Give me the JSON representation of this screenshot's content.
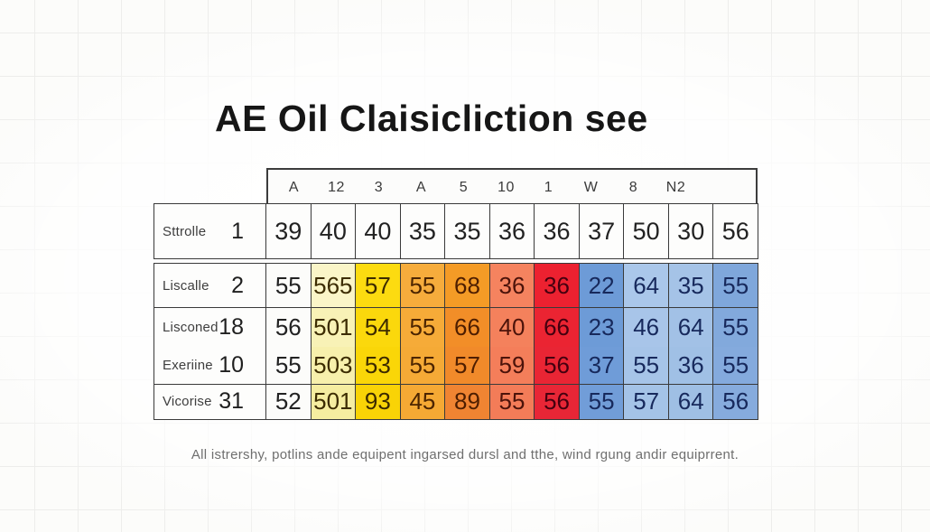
{
  "title": "AE Oil Claisicliction see",
  "caption": "All istrershy, potlins ande equipent ingarsed dursl and tthe, wind rgung andir equiprrent.",
  "chart_data": {
    "type": "table",
    "title": "AE Oil Claisicliction see",
    "column_headers": [
      "A",
      "12",
      "3",
      "A",
      "5",
      "10",
      "1",
      "W",
      "8",
      "N2"
    ],
    "rows": [
      {
        "label": "Sttrolle",
        "index": "1",
        "values": [
          39,
          40,
          40,
          35,
          35,
          36,
          36,
          37,
          50,
          30,
          56
        ]
      },
      {
        "label": "Liscalle",
        "index": "2",
        "values": [
          55,
          565,
          57,
          55,
          68,
          36,
          36,
          22,
          64,
          35,
          55
        ]
      },
      {
        "label": "Lisconed",
        "index": "18",
        "values": [
          56,
          501,
          54,
          55,
          66,
          40,
          66,
          23,
          46,
          64,
          55
        ]
      },
      {
        "label": "Exeriine",
        "index": "10",
        "values": [
          55,
          503,
          53,
          55,
          57,
          59,
          56,
          37,
          55,
          36,
          55
        ]
      },
      {
        "label": "Vicorise",
        "index": "31",
        "values": [
          52,
          501,
          93,
          45,
          89,
          55,
          56,
          55,
          57,
          64,
          56
        ]
      }
    ],
    "caption": "All istrershy, potlins ande equipent ingarsed dursl and tthe, wind rgung andir equiprrent."
  },
  "cell_colors": {
    "rows": [
      [
        "#FDFDFC",
        "#FDFDFC",
        "#FDFDFC",
        "#FDFDFC",
        "#FDFDFC",
        "#FDFDFC",
        "#FDFDFC",
        "#FDFDFC",
        "#FDFDFC",
        "#FDFDFC",
        "#FDFDFC"
      ],
      [
        "#FCFCFA",
        "#FAF5C8",
        "#FCDB10",
        "#F6AC3C",
        "#F49B26",
        "#F5835F",
        "#EC2130",
        "#6D9BD7",
        "#AAC7EA",
        "#A5C3E7",
        "#7FA7DB"
      ],
      [
        "#FCFCFA",
        "#F8F2B6",
        "#FBD80C",
        "#F6AB38",
        "#F28E28",
        "#F4815C",
        "#EB2432",
        "#6D9BD7",
        "#A8C5E9",
        "#A2C1E6",
        "#82A9DC"
      ],
      [
        "#FCFCFA",
        "#F7F0AC",
        "#FAD608",
        "#F5AA36",
        "#F18A2A",
        "#F47E5A",
        "#E92534",
        "#6F9CD8",
        "#A6C4E8",
        "#A0C0E5",
        "#84AADD"
      ],
      [
        "#FCFCFA",
        "#F5EDA0",
        "#F9D306",
        "#F5A934",
        "#F08432",
        "#F37C58",
        "#E82636",
        "#719DD8",
        "#A4C3E7",
        "#9FBFE4",
        "#86ABDD"
      ]
    ]
  },
  "cell_text_colors": {
    "rows": [
      [
        "#222222",
        "#222222",
        "#222222",
        "#222222",
        "#222222",
        "#222222",
        "#222222",
        "#222222",
        "#222222",
        "#222222",
        "#222222"
      ],
      [
        "#222222",
        "#3C2C00",
        "#3C2A00",
        "#4C2500",
        "#4E1E00",
        "#4C130A",
        "#45000F",
        "#17295C",
        "#17295C",
        "#17295C",
        "#17295C"
      ],
      [
        "#222222",
        "#3C2C00",
        "#3C2A00",
        "#4C2500",
        "#4E1E00",
        "#4C130A",
        "#45000F",
        "#17295C",
        "#17295C",
        "#17295C",
        "#17295C"
      ],
      [
        "#222222",
        "#3C2C00",
        "#3C2A00",
        "#4C2500",
        "#4E1E00",
        "#4C130A",
        "#45000F",
        "#17295C",
        "#17295C",
        "#17295C",
        "#17295C"
      ],
      [
        "#222222",
        "#3C2C00",
        "#3C2A00",
        "#4C2500",
        "#4E1E00",
        "#4C130A",
        "#45000F",
        "#17295C",
        "#17295C",
        "#17295C",
        "#17295C"
      ]
    ]
  }
}
